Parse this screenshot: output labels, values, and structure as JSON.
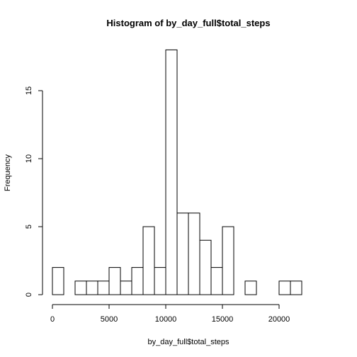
{
  "chart_data": {
    "type": "bar",
    "title": "Histogram of by_day_full$total_steps",
    "xlabel": "by_day_full$total_steps",
    "ylabel": "Frequency",
    "bin_width": 1000,
    "bin_starts": [
      0,
      1000,
      2000,
      3000,
      4000,
      5000,
      6000,
      7000,
      8000,
      9000,
      10000,
      11000,
      12000,
      13000,
      14000,
      15000,
      16000,
      17000,
      18000,
      19000,
      20000,
      21000,
      22000,
      23000
    ],
    "values": [
      2,
      0,
      1,
      1,
      1,
      2,
      1,
      2,
      5,
      2,
      18,
      6,
      6,
      4,
      2,
      5,
      0,
      1,
      0,
      0,
      1,
      1,
      0,
      0
    ],
    "xlim": [
      0,
      24000
    ],
    "ylim": [
      0,
      18
    ],
    "x_ticks": [
      0,
      5000,
      10000,
      15000,
      20000
    ],
    "x_tick_labels": [
      "0",
      "5000",
      "10000",
      "15000",
      "20000"
    ],
    "y_ticks": [
      0,
      5,
      10,
      15
    ],
    "y_tick_labels": [
      "0",
      "5",
      "10",
      "15"
    ],
    "grid": false
  }
}
